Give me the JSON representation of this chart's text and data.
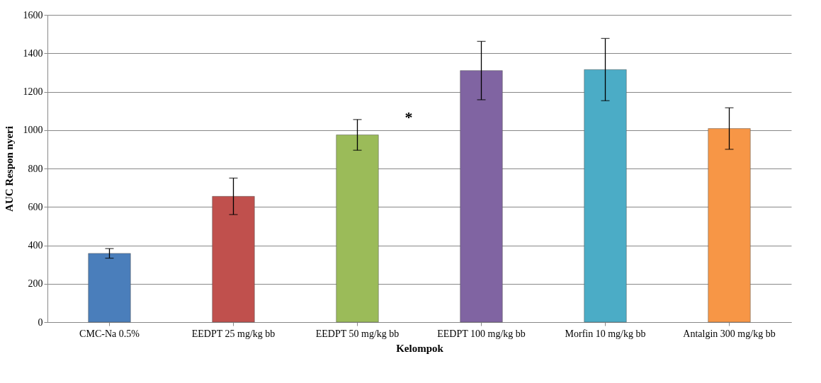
{
  "chart_data": {
    "type": "bar",
    "xlabel": "Kelompok",
    "ylabel": "AUC Respon nyeri",
    "categories": [
      "CMC-Na 0.5%",
      "EEDPT 25 mg/kg bb",
      "EEDPT 50 mg/kg bb",
      "EEDPT 100 mg/kg bb",
      "Morfin 10 mg/kg bb",
      "Antalgin 300 mg/kg bb"
    ],
    "values": [
      358,
      655,
      975,
      1310,
      1315,
      1008
    ],
    "errors": [
      25,
      95,
      80,
      152,
      162,
      108
    ],
    "colors": [
      "#4a7ebb",
      "#c0504d",
      "#9bbb59",
      "#8064a2",
      "#4bacc6",
      "#f79646"
    ],
    "ylim": [
      0,
      1600
    ],
    "yticks": [
      0,
      200,
      400,
      600,
      800,
      1000,
      1200,
      1400,
      1600
    ],
    "grid": "y",
    "annotations": [
      "*"
    ]
  }
}
